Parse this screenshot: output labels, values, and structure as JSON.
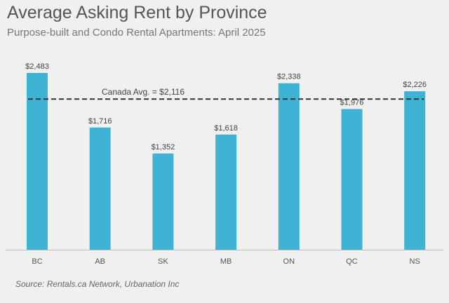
{
  "colors": {
    "bar": "#3fb3d3",
    "avg_line": "#333333",
    "axis": "#bbbbbb",
    "label": "#444444"
  },
  "chart_data": {
    "type": "bar",
    "title": "Average Asking Rent by Province",
    "subtitle": "Purpose-built and Condo Rental Apartments: April 2025",
    "categories": [
      "BC",
      "AB",
      "SK",
      "MB",
      "ON",
      "QC",
      "NS"
    ],
    "values": [
      2483,
      1716,
      1352,
      1618,
      2338,
      1976,
      2226
    ],
    "data_labels": [
      "$2,483",
      "$1,716",
      "$1,352",
      "$1,618",
      "$2,338",
      "$1,976",
      "$2,226"
    ],
    "ylim": [
      0,
      2483
    ],
    "grid": false,
    "reference_line": {
      "value": 2116,
      "label": "Canada Avg. = $2,116",
      "style": "dashed"
    },
    "source": "Source: Rentals.ca Network, Urbanation Inc"
  }
}
